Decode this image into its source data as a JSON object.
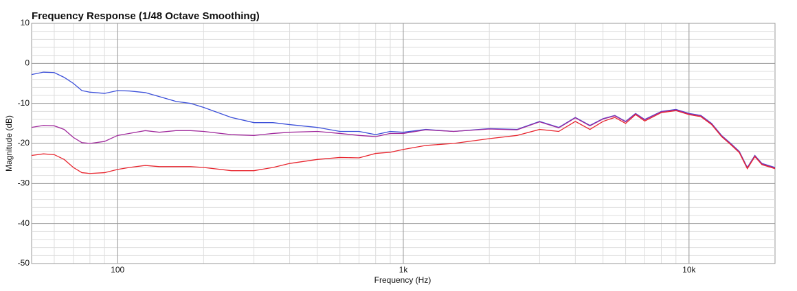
{
  "chart_data": {
    "type": "line",
    "title": "Frequency Response (1/48 Octave Smoothing)",
    "x_label": "Frequency (Hz)",
    "y_label": "Magnitude (dB)",
    "xscale": "log",
    "grid": true,
    "xlim": [
      50,
      20000
    ],
    "ylim": [
      -50,
      10
    ],
    "xticks": [
      100,
      {
        "value": 1000,
        "label": "1k"
      },
      {
        "value": 10000,
        "label": "10k"
      }
    ],
    "yticks": [
      10,
      0,
      -10,
      -20,
      -30,
      -40,
      -50
    ],
    "x": [
      50,
      55,
      60,
      65,
      70,
      75,
      80,
      90,
      100,
      110,
      125,
      140,
      160,
      180,
      200,
      250,
      300,
      350,
      400,
      500,
      600,
      700,
      800,
      900,
      1000,
      1200,
      1500,
      2000,
      2500,
      3000,
      3500,
      4000,
      4500,
      5000,
      5500,
      6000,
      6500,
      7000,
      8000,
      9000,
      10000,
      11000,
      12000,
      13000,
      14000,
      15000,
      16000,
      17000,
      18000,
      20000
    ],
    "series": [
      {
        "color": "#3b4fd9",
        "values": [
          -2.8,
          -2.2,
          -2.3,
          -3.5,
          -5,
          -6.8,
          -7.2,
          -7.5,
          -6.8,
          -6.9,
          -7.3,
          -8.3,
          -9.5,
          -10,
          -11,
          -13.5,
          -14.8,
          -14.8,
          -15.3,
          -16,
          -17,
          -17,
          -17.8,
          -17,
          -17.2,
          -16.5,
          -17,
          -16.3,
          -16.5,
          -14.5,
          -16,
          -13.5,
          -15.5,
          -13.8,
          -13,
          -14.5,
          -12.5,
          -14,
          -12,
          -11.5,
          -12.5,
          -13,
          -15,
          -18,
          -20,
          -22,
          -26,
          -23,
          -25,
          -26
        ]
      },
      {
        "color": "#a02a9c",
        "values": [
          -16,
          -15.5,
          -15.6,
          -16.5,
          -18.5,
          -19.8,
          -20,
          -19.5,
          -18,
          -17.5,
          -16.8,
          -17.2,
          -16.8,
          -16.8,
          -17,
          -17.8,
          -18,
          -17.5,
          -17.2,
          -17,
          -17.5,
          -18,
          -18.3,
          -17.5,
          -17.5,
          -16.6,
          -17,
          -16.4,
          -16.6,
          -14.6,
          -16.1,
          -13.6,
          -15.6,
          -13.9,
          -13.1,
          -14.6,
          -12.6,
          -14.1,
          -12.1,
          -11.6,
          -12.6,
          -13.1,
          -15.1,
          -18.1,
          -20.1,
          -22.1,
          -26.1,
          -23.1,
          -25.1,
          -26.1
        ]
      },
      {
        "color": "#e8262f",
        "values": [
          -23,
          -22.6,
          -22.8,
          -24,
          -26,
          -27.3,
          -27.5,
          -27.3,
          -26.5,
          -26,
          -25.5,
          -25.8,
          -25.8,
          -25.8,
          -26,
          -26.8,
          -26.8,
          -26,
          -25,
          -24,
          -23.5,
          -23.6,
          -22.5,
          -22.2,
          -21.5,
          -20.5,
          -20,
          -18.8,
          -18,
          -16.5,
          -17,
          -14.5,
          -16.5,
          -14.5,
          -13.5,
          -15,
          -12.8,
          -14.4,
          -12.3,
          -11.8,
          -12.8,
          -13.3,
          -15.3,
          -18.3,
          -20.3,
          -22.3,
          -26.3,
          -23.3,
          -25.3,
          -26.3
        ]
      }
    ]
  }
}
